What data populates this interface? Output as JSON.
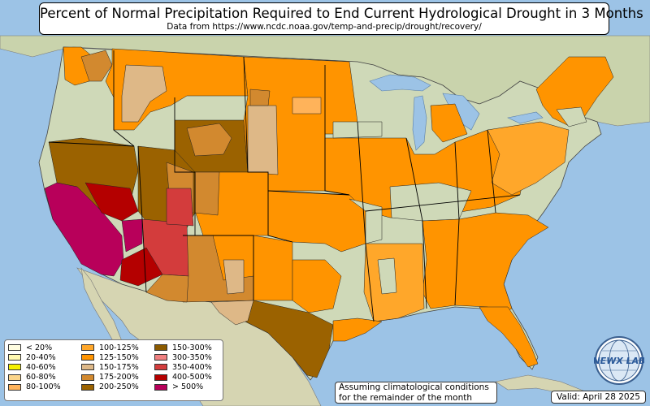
{
  "header": {
    "title": "Percent of Normal Precipitation Required to End Current Hydrological Drought in 3 Months",
    "subtitle": "Data from https://www.ncdc.noaa.gov/temp-and-precip/drought/recovery/"
  },
  "legend": {
    "items": [
      {
        "label": "< 20%",
        "color": "#fffde0"
      },
      {
        "label": "20-40%",
        "color": "#fff8b0"
      },
      {
        "label": "40-60%",
        "color": "#f5f000"
      },
      {
        "label": "60-80%",
        "color": "#fbd58a"
      },
      {
        "label": "80-100%",
        "color": "#ffb35a"
      },
      {
        "label": "100-125%",
        "color": "#ffa72a"
      },
      {
        "label": "125-150%",
        "color": "#ff9400"
      },
      {
        "label": "150-175%",
        "color": "#deb887"
      },
      {
        "label": "175-200%",
        "color": "#d2892f"
      },
      {
        "label": "200-250%",
        "color": "#9b6200"
      },
      {
        "label": "150-300%",
        "color": "#8b5a00"
      },
      {
        "label": "300-350%",
        "color": "#f08080"
      },
      {
        "label": "350-400%",
        "color": "#d33c3c"
      },
      {
        "label": "400-500%",
        "color": "#b40000"
      },
      {
        "label": "> 500%",
        "color": "#b8005a"
      }
    ]
  },
  "note": {
    "line1": "Assuming climatological conditions",
    "line2": "for the remainder of the month"
  },
  "valid_label": "Valid: April 28 2025",
  "logo": {
    "text": "NEWX LAB",
    "icon": "globe-logo-icon"
  },
  "colors": {
    "ocean": "#9cc3e6",
    "land": "#cfd9b8",
    "canada": "#c9d3ac"
  }
}
